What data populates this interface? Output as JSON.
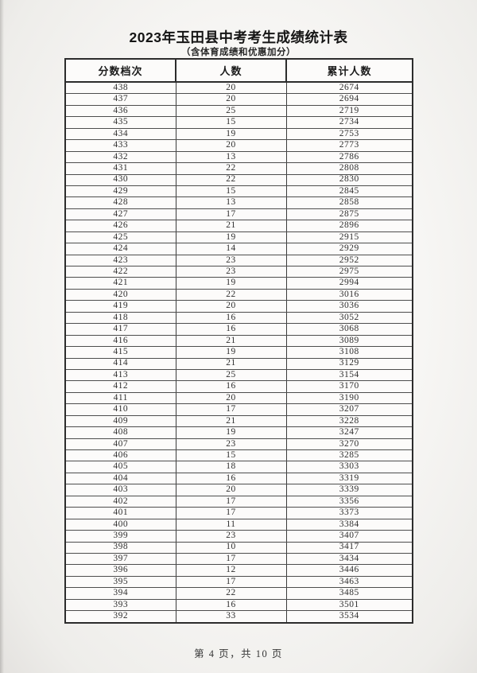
{
  "doc": {
    "title": "2023年玉田县中考考生成绩统计表",
    "subtitle": "（含体育成绩和优惠加分）",
    "footer": "第 4 页，共 10 页"
  },
  "colors": {
    "page_background": "#f6f5f3",
    "table_border": "#2c2c2c",
    "text": "#303030"
  },
  "table": {
    "headers": [
      "分数档次",
      "人数",
      "累计人数"
    ],
    "rows": [
      [
        438,
        20,
        2674
      ],
      [
        437,
        20,
        2694
      ],
      [
        436,
        25,
        2719
      ],
      [
        435,
        15,
        2734
      ],
      [
        434,
        19,
        2753
      ],
      [
        433,
        20,
        2773
      ],
      [
        432,
        13,
        2786
      ],
      [
        431,
        22,
        2808
      ],
      [
        430,
        22,
        2830
      ],
      [
        429,
        15,
        2845
      ],
      [
        428,
        13,
        2858
      ],
      [
        427,
        17,
        2875
      ],
      [
        426,
        21,
        2896
      ],
      [
        425,
        19,
        2915
      ],
      [
        424,
        14,
        2929
      ],
      [
        423,
        23,
        2952
      ],
      [
        422,
        23,
        2975
      ],
      [
        421,
        19,
        2994
      ],
      [
        420,
        22,
        3016
      ],
      [
        419,
        20,
        3036
      ],
      [
        418,
        16,
        3052
      ],
      [
        417,
        16,
        3068
      ],
      [
        416,
        21,
        3089
      ],
      [
        415,
        19,
        3108
      ],
      [
        414,
        21,
        3129
      ],
      [
        413,
        25,
        3154
      ],
      [
        412,
        16,
        3170
      ],
      [
        411,
        20,
        3190
      ],
      [
        410,
        17,
        3207
      ],
      [
        409,
        21,
        3228
      ],
      [
        408,
        19,
        3247
      ],
      [
        407,
        23,
        3270
      ],
      [
        406,
        15,
        3285
      ],
      [
        405,
        18,
        3303
      ],
      [
        404,
        16,
        3319
      ],
      [
        403,
        20,
        3339
      ],
      [
        402,
        17,
        3356
      ],
      [
        401,
        17,
        3373
      ],
      [
        400,
        11,
        3384
      ],
      [
        399,
        23,
        3407
      ],
      [
        398,
        10,
        3417
      ],
      [
        397,
        17,
        3434
      ],
      [
        396,
        12,
        3446
      ],
      [
        395,
        17,
        3463
      ],
      [
        394,
        22,
        3485
      ],
      [
        393,
        16,
        3501
      ],
      [
        392,
        33,
        3534
      ]
    ]
  }
}
